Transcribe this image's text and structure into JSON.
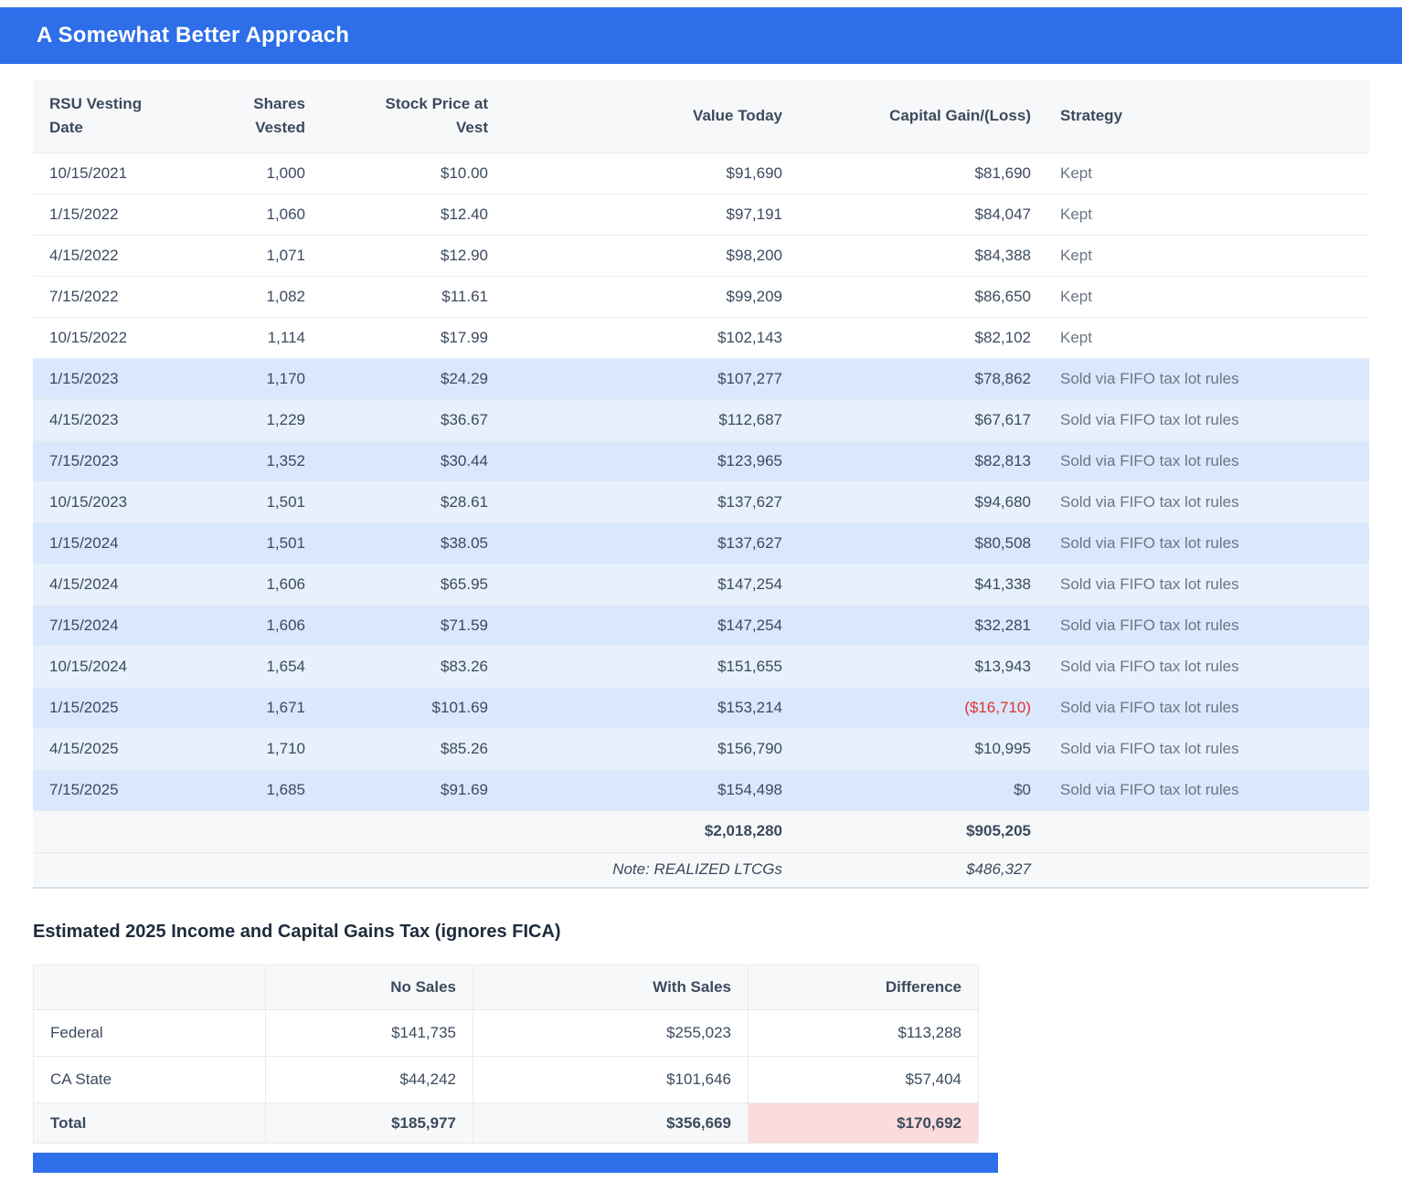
{
  "header": {
    "title": "A Somewhat Better Approach"
  },
  "vesting_table": {
    "columns": [
      "RSU Vesting Date",
      "Shares Vested",
      "Stock Price at Vest",
      "Value Today",
      "Capital Gain/(Loss)",
      "Strategy"
    ],
    "rows": [
      {
        "date": "10/15/2021",
        "shares": "1,000",
        "price": "$10.00",
        "value": "$91,690",
        "gain": "$81,690",
        "strategy": "Kept",
        "sold": false,
        "negative": false
      },
      {
        "date": "1/15/2022",
        "shares": "1,060",
        "price": "$12.40",
        "value": "$97,191",
        "gain": "$84,047",
        "strategy": "Kept",
        "sold": false,
        "negative": false
      },
      {
        "date": "4/15/2022",
        "shares": "1,071",
        "price": "$12.90",
        "value": "$98,200",
        "gain": "$84,388",
        "strategy": "Kept",
        "sold": false,
        "negative": false
      },
      {
        "date": "7/15/2022",
        "shares": "1,082",
        "price": "$11.61",
        "value": "$99,209",
        "gain": "$86,650",
        "strategy": "Kept",
        "sold": false,
        "negative": false
      },
      {
        "date": "10/15/2022",
        "shares": "1,114",
        "price": "$17.99",
        "value": "$102,143",
        "gain": "$82,102",
        "strategy": "Kept",
        "sold": false,
        "negative": false
      },
      {
        "date": "1/15/2023",
        "shares": "1,170",
        "price": "$24.29",
        "value": "$107,277",
        "gain": "$78,862",
        "strategy": "Sold via FIFO tax lot rules",
        "sold": true,
        "negative": false
      },
      {
        "date": "4/15/2023",
        "shares": "1,229",
        "price": "$36.67",
        "value": "$112,687",
        "gain": "$67,617",
        "strategy": "Sold via FIFO tax lot rules",
        "sold": true,
        "negative": false
      },
      {
        "date": "7/15/2023",
        "shares": "1,352",
        "price": "$30.44",
        "value": "$123,965",
        "gain": "$82,813",
        "strategy": "Sold via FIFO tax lot rules",
        "sold": true,
        "negative": false
      },
      {
        "date": "10/15/2023",
        "shares": "1,501",
        "price": "$28.61",
        "value": "$137,627",
        "gain": "$94,680",
        "strategy": "Sold via FIFO tax lot rules",
        "sold": true,
        "negative": false
      },
      {
        "date": "1/15/2024",
        "shares": "1,501",
        "price": "$38.05",
        "value": "$137,627",
        "gain": "$80,508",
        "strategy": "Sold via FIFO tax lot rules",
        "sold": true,
        "negative": false
      },
      {
        "date": "4/15/2024",
        "shares": "1,606",
        "price": "$65.95",
        "value": "$147,254",
        "gain": "$41,338",
        "strategy": "Sold via FIFO tax lot rules",
        "sold": true,
        "negative": false
      },
      {
        "date": "7/15/2024",
        "shares": "1,606",
        "price": "$71.59",
        "value": "$147,254",
        "gain": "$32,281",
        "strategy": "Sold via FIFO tax lot rules",
        "sold": true,
        "negative": false
      },
      {
        "date": "10/15/2024",
        "shares": "1,654",
        "price": "$83.26",
        "value": "$151,655",
        "gain": "$13,943",
        "strategy": "Sold via FIFO tax lot rules",
        "sold": true,
        "negative": false
      },
      {
        "date": "1/15/2025",
        "shares": "1,671",
        "price": "$101.69",
        "value": "$153,214",
        "gain": "($16,710)",
        "strategy": "Sold via FIFO tax lot rules",
        "sold": true,
        "negative": true
      },
      {
        "date": "4/15/2025",
        "shares": "1,710",
        "price": "$85.26",
        "value": "$156,790",
        "gain": "$10,995",
        "strategy": "Sold via FIFO tax lot rules",
        "sold": true,
        "negative": false
      },
      {
        "date": "7/15/2025",
        "shares": "1,685",
        "price": "$91.69",
        "value": "$154,498",
        "gain": "$0",
        "strategy": "Sold via FIFO tax lot rules",
        "sold": true,
        "negative": false
      }
    ],
    "totals": {
      "value": "$2,018,280",
      "gain": "$905,205"
    },
    "note": {
      "label": "Note: REALIZED LTCGs",
      "value": "$486,327"
    }
  },
  "tax_section": {
    "title": "Estimated 2025 Income and Capital Gains Tax (ignores FICA)",
    "columns": [
      "No Sales",
      "With Sales",
      "Difference"
    ],
    "rows": [
      {
        "label": "Federal",
        "no_sales": "$141,735",
        "with_sales": "$255,023",
        "difference": "$113,288"
      },
      {
        "label": "CA State",
        "no_sales": "$44,242",
        "with_sales": "$101,646",
        "difference": "$57,404"
      },
      {
        "label": "Total",
        "no_sales": "$185,977",
        "with_sales": "$356,669",
        "difference": "$170,692"
      }
    ]
  },
  "colors": {
    "accent_blue": "#2e6fe9",
    "table_header_bg": "#f7f8f9",
    "row_sold_a": "#d9e8fc",
    "row_sold_b": "#e7f1fd",
    "negative_red": "#e03131",
    "difference_highlight": "#fbdcdc",
    "text_primary": "#3c4a5e",
    "text_muted": "#6b7684",
    "section_title_color": "#1d2b3d"
  }
}
